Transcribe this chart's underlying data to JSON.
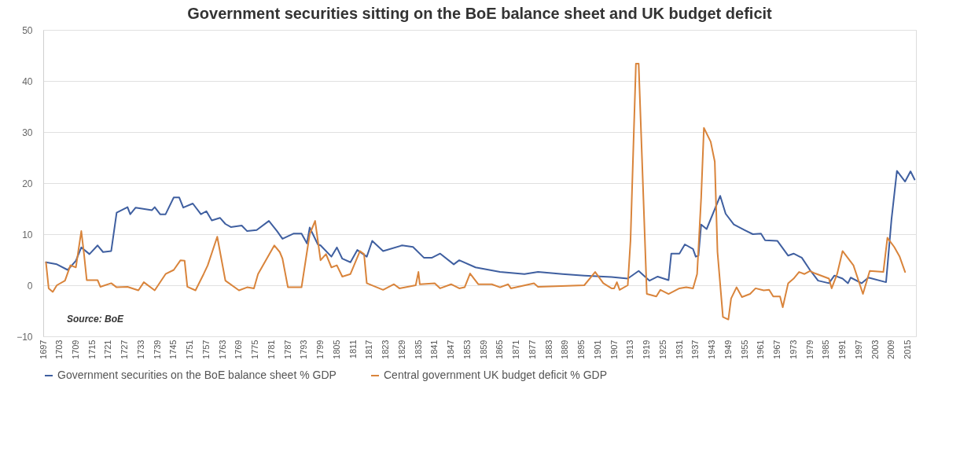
{
  "chart_data": {
    "type": "line",
    "title": "Government securities sitting on the BoE balance sheet and UK budget deficit",
    "xlim": [
      1697,
      2018
    ],
    "xticks": [
      1697,
      1703,
      1709,
      1715,
      1721,
      1727,
      1733,
      1739,
      1745,
      1751,
      1757,
      1763,
      1769,
      1775,
      1781,
      1787,
      1793,
      1799,
      1805,
      1811,
      1817,
      1823,
      1829,
      1835,
      1841,
      1847,
      1853,
      1859,
      1865,
      1871,
      1877,
      1883,
      1889,
      1895,
      1901,
      1907,
      1913,
      1919,
      1925,
      1931,
      1937,
      1943,
      1949,
      1955,
      1961,
      1967,
      1973,
      1979,
      1985,
      1991,
      1997,
      2003,
      2009,
      2015
    ],
    "ylim": [
      -10,
      50
    ],
    "yticks": [
      -10,
      0,
      10,
      20,
      30,
      40,
      50
    ],
    "grid": "y",
    "legend": "bottom",
    "annotations": [
      "Source: BoE"
    ],
    "series": [
      {
        "name": "Government securities on the BoE balance sheet % GDP",
        "color": "#3f5fa0",
        "x": [
          1698,
          1702,
          1706,
          1709,
          1711,
          1714,
          1717,
          1719,
          1722,
          1724,
          1728,
          1729,
          1731,
          1737,
          1738,
          1740,
          1742,
          1745,
          1747,
          1748.5,
          1752,
          1755,
          1757,
          1759,
          1762,
          1764,
          1766,
          1770,
          1772,
          1775.5,
          1780,
          1783,
          1785,
          1789,
          1792,
          1794,
          1795,
          1798,
          1799,
          1803,
          1805,
          1807,
          1810,
          1812.5,
          1816,
          1818,
          1822,
          1829,
          1833,
          1837,
          1840,
          1843,
          1848,
          1850,
          1856,
          1865,
          1874,
          1879,
          1888,
          1896,
          1906,
          1912,
          1916,
          1920,
          1923,
          1927,
          1928,
          1931,
          1933,
          1936,
          1937,
          1938,
          1939,
          1941,
          1946,
          1948,
          1951,
          1955,
          1958,
          1961,
          1962.5,
          1967,
          1971,
          1973,
          1976,
          1979,
          1982,
          1986,
          1988,
          1991,
          1993,
          1994,
          1998,
          2000.5,
          2007,
          2009,
          2011,
          2014,
          2016,
          2017.5
        ],
        "values": [
          4.5,
          4.1,
          3.0,
          4.8,
          7.4,
          6.1,
          7.8,
          6.5,
          6.7,
          14.2,
          15.3,
          13.9,
          15.2,
          14.7,
          15.3,
          13.9,
          13.9,
          17.2,
          17.2,
          15.2,
          16.0,
          13.9,
          14.5,
          12.7,
          13.2,
          12.0,
          11.4,
          11.7,
          10.6,
          10.8,
          12.6,
          10.6,
          9.1,
          10.1,
          10.1,
          8.2,
          11.3,
          8.0,
          7.8,
          5.6,
          7.4,
          5.2,
          4.5,
          6.9,
          5.6,
          8.7,
          6.7,
          7.8,
          7.5,
          5.4,
          5.4,
          6.2,
          4.1,
          4.9,
          3.5,
          2.6,
          2.2,
          2.6,
          2.2,
          1.9,
          1.6,
          1.3,
          2.8,
          0.9,
          1.7,
          1.0,
          6.2,
          6.2,
          8.0,
          7.1,
          5.6,
          5.8,
          11.9,
          11.0,
          17.5,
          14.0,
          11.9,
          10.8,
          10.0,
          10.1,
          8.8,
          8.7,
          5.8,
          6.2,
          5.4,
          3.0,
          0.9,
          0.4,
          1.9,
          1.3,
          0.4,
          1.5,
          0.4,
          1.5,
          0.6,
          12.9,
          22.4,
          20.3,
          22.3,
          20.7
        ]
      },
      {
        "name": "Central government UK budget deficit % GDP",
        "color": "#d9843b",
        "x": [
          1698,
          1699,
          1700.5,
          1702,
          1705,
          1707,
          1709,
          1711,
          1712,
          1713,
          1717,
          1718,
          1722,
          1724,
          1728,
          1732,
          1734,
          1738,
          1742,
          1745,
          1747.5,
          1749,
          1750,
          1753,
          1756,
          1757.5,
          1761,
          1764,
          1769,
          1772,
          1774.5,
          1776,
          1782,
          1784,
          1785,
          1787,
          1792,
          1795,
          1797,
          1799,
          1801,
          1803,
          1805,
          1807,
          1810,
          1813.5,
          1815,
          1816,
          1822,
          1826,
          1828,
          1834,
          1835,
          1835.5,
          1841,
          1843,
          1847,
          1850,
          1852,
          1854,
          1857,
          1862,
          1865,
          1868,
          1869,
          1877.5,
          1879,
          1896,
          1900,
          1903,
          1906,
          1907,
          1908,
          1909,
          1912,
          1913,
          1915,
          1916,
          1919,
          1922.5,
          1924,
          1927,
          1931,
          1933.5,
          1936,
          1937.5,
          1939,
          1940,
          1942.5,
          1944,
          1945,
          1947,
          1949,
          1950,
          1952,
          1954,
          1957,
          1959,
          1962,
          1964,
          1965.5,
          1968,
          1969,
          1971,
          1973,
          1975,
          1977,
          1979,
          1981,
          1986,
          1987,
          1989,
          1991,
          1995,
          1998.5,
          2001,
          2006,
          2007.5,
          2010,
          2012,
          2014
        ],
        "values": [
          4.5,
          -0.6,
          -1.3,
          0,
          0.9,
          3.9,
          3.5,
          10.6,
          6.1,
          1.0,
          1.0,
          -0.3,
          0.4,
          -0.4,
          -0.3,
          -1.0,
          0.6,
          -1.0,
          2.2,
          3.0,
          4.9,
          4.8,
          -0.3,
          -1.0,
          2.2,
          3.9,
          9.5,
          0.9,
          -1.0,
          -0.4,
          -0.6,
          2.2,
          7.8,
          6.5,
          5.2,
          -0.4,
          -0.4,
          10.0,
          12.6,
          4.9,
          6.1,
          3.5,
          3.9,
          1.7,
          2.2,
          6.7,
          6.1,
          0.4,
          -0.9,
          0.2,
          -0.6,
          0,
          2.6,
          0.2,
          0.4,
          -0.6,
          0.2,
          -0.6,
          -0.4,
          2.3,
          0.2,
          0.2,
          -0.4,
          0.2,
          -0.6,
          0.4,
          -0.3,
          0,
          2.6,
          0.4,
          -0.6,
          -0.6,
          0.6,
          -0.9,
          0,
          8.7,
          43.4,
          43.4,
          -1.7,
          -2.2,
          -0.9,
          -1.7,
          -0.6,
          -0.4,
          -0.6,
          2.2,
          17.2,
          30.8,
          28.1,
          24.2,
          6.5,
          -6.2,
          -6.7,
          -2.6,
          -0.4,
          -2.3,
          -1.7,
          -0.6,
          -1.0,
          -0.9,
          -2.2,
          -2.2,
          -4.3,
          0.4,
          1.3,
          2.6,
          2.2,
          2.8,
          2.3,
          1.3,
          -0.6,
          2.2,
          6.7,
          3.9,
          -1.7,
          2.8,
          2.6,
          9.3,
          7.5,
          5.6,
          2.6
        ]
      }
    ]
  }
}
